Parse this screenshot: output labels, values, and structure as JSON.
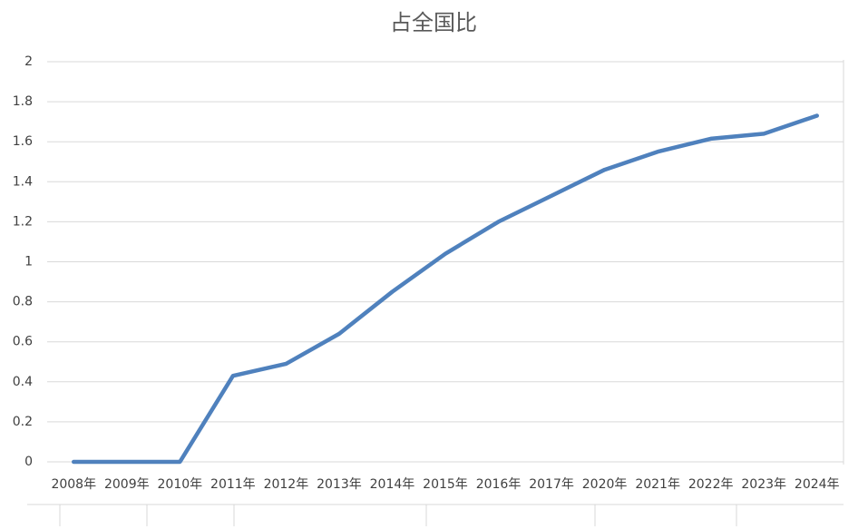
{
  "chart_data": {
    "type": "line",
    "title": "占全国比",
    "categories": [
      "2008年",
      "2009年",
      "2010年",
      "2011年",
      "2012年",
      "2013年",
      "2014年",
      "2015年",
      "2016年",
      "2017年",
      "2020年",
      "2021年",
      "2022年",
      "2023年",
      "2024年"
    ],
    "series": [
      {
        "name": "占全国比",
        "color": "#4f81bd",
        "values": [
          0,
          0,
          0,
          0.43,
          0.49,
          0.64,
          0.85,
          1.04,
          1.2,
          1.33,
          1.46,
          1.55,
          1.615,
          1.64,
          1.73
        ]
      }
    ],
    "ylim": [
      0,
      2
    ],
    "yticks": [
      0,
      0.2,
      0.4,
      0.6,
      0.8,
      1,
      1.2,
      1.4,
      1.6,
      1.8,
      2
    ],
    "grid": true
  }
}
